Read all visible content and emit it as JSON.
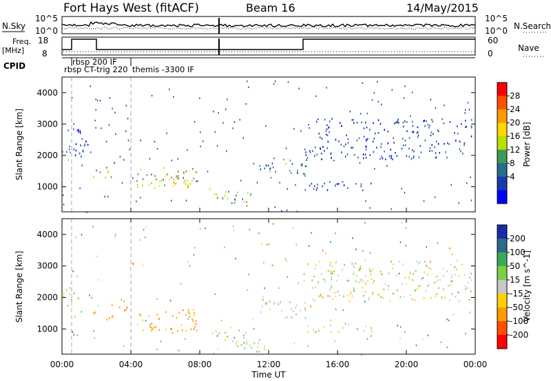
{
  "header": {
    "station": "Fort Hays West (fitACF)",
    "beam": "Beam 16",
    "date": "14/May/2015"
  },
  "strips": {
    "nsky_label": "N.Sky",
    "nsky_ticks": [
      "10^5",
      "10^0"
    ],
    "nsearch_label": "N.Search",
    "nsearch_ticks": [
      "10^5",
      "10^0"
    ],
    "freq_label_1": "Freq.",
    "freq_label_2": "[MHz]",
    "freq_ticks": [
      "18",
      "8"
    ],
    "nave_label": "Nave",
    "nave_ticks": [
      "60",
      "0"
    ],
    "cpid_label": "CPID",
    "cpid_annotations": [
      "rbsp 200 IF",
      "rbsp CT-trig 220",
      "themis -3300 IF"
    ]
  },
  "axes": {
    "ylabel": "Slant Range [km]",
    "xlabel": "Time UT",
    "yticks": [
      1000,
      2000,
      3000,
      4000
    ],
    "xticks": [
      "00:00",
      "04:00",
      "08:00",
      "12:00",
      "16:00",
      "20:00",
      "00:00"
    ]
  },
  "colorbars": {
    "power": {
      "label": "Power [dB]",
      "ticks": [
        "28",
        "24",
        "20",
        "16",
        "12",
        "8",
        "4"
      ],
      "colors": [
        "#ff0000",
        "#ff5000",
        "#ff9a00",
        "#ffd800",
        "#b8e000",
        "#3a9a5a",
        "#2a6a8a",
        "#1a3aaa",
        "#0000ff"
      ]
    },
    "velocity": {
      "label": "Velocity [m s^-1]",
      "ticks": [
        "200",
        "100",
        "50",
        "15",
        "-15",
        "-50",
        "-100",
        "-200"
      ],
      "colors": [
        "#1a2aaa",
        "#2a6a8a",
        "#3aaa5a",
        "#7ad040",
        "#c8c8c8",
        "#ffd000",
        "#ff9a00",
        "#ff5000",
        "#ff0000"
      ]
    }
  },
  "chart_data": [
    {
      "type": "heatmap",
      "name": "Power",
      "xlabel": "Time UT",
      "ylabel": "Slant Range [km]",
      "xlim": [
        0,
        24
      ],
      "ylim": [
        200,
        4500
      ],
      "color_label": "Power [dB]",
      "color_range": [
        0,
        30
      ],
      "regions": [
        {
          "t": [
            0.0,
            0.5
          ],
          "r": [
            1700,
            2300
          ],
          "val": 10
        },
        {
          "t": [
            0.5,
            1.5
          ],
          "r": [
            1900,
            2900
          ],
          "val": 5
        },
        {
          "t": [
            1.8,
            3.0
          ],
          "r": [
            1250,
            1600
          ],
          "val": 14
        },
        {
          "t": [
            2.8,
            3.8
          ],
          "r": [
            1600,
            2000
          ],
          "val": 8
        },
        {
          "t": [
            4.2,
            7.8
          ],
          "r": [
            900,
            1650
          ],
          "val": 14
        },
        {
          "t": [
            5.5,
            7.5
          ],
          "r": [
            1000,
            1400
          ],
          "val": 20
        },
        {
          "t": [
            8.5,
            11.0
          ],
          "r": [
            500,
            1000
          ],
          "val": 12
        },
        {
          "t": [
            10.2,
            11.0
          ],
          "r": [
            300,
            500
          ],
          "val": 24
        },
        {
          "t": [
            11.5,
            14.2
          ],
          "r": [
            1300,
            1900
          ],
          "val": 10
        },
        {
          "t": [
            14.0,
            23.8
          ],
          "r": [
            1900,
            3200
          ],
          "val": 6
        },
        {
          "t": [
            14.0,
            18.0
          ],
          "r": [
            900,
            1200
          ],
          "val": 6
        }
      ]
    },
    {
      "type": "heatmap",
      "name": "Velocity",
      "xlabel": "Time UT",
      "ylabel": "Slant Range [km]",
      "xlim": [
        0,
        24
      ],
      "ylim": [
        200,
        4500
      ],
      "color_label": "Velocity [m s^-1]",
      "color_range": [
        -250,
        250
      ],
      "regions": [
        {
          "t": [
            0.0,
            0.5
          ],
          "r": [
            1700,
            2300
          ],
          "val": 0
        },
        {
          "t": [
            1.8,
            3.0
          ],
          "r": [
            1250,
            1600
          ],
          "val": -60
        },
        {
          "t": [
            2.8,
            3.8
          ],
          "r": [
            1600,
            2000
          ],
          "val": -80
        },
        {
          "t": [
            4.2,
            7.8
          ],
          "r": [
            900,
            1650
          ],
          "val": -70
        },
        {
          "t": [
            8.5,
            11.0
          ],
          "r": [
            500,
            1000
          ],
          "val": 0
        },
        {
          "t": [
            10.0,
            12.0
          ],
          "r": [
            300,
            700
          ],
          "val": 0
        },
        {
          "t": [
            11.5,
            14.2
          ],
          "r": [
            1300,
            1900
          ],
          "val": 20
        },
        {
          "t": [
            14.0,
            23.8
          ],
          "r": [
            1900,
            3200
          ],
          "val": 0
        },
        {
          "t": [
            14.0,
            18.0
          ],
          "r": [
            900,
            1200
          ],
          "val": 0
        }
      ]
    }
  ]
}
